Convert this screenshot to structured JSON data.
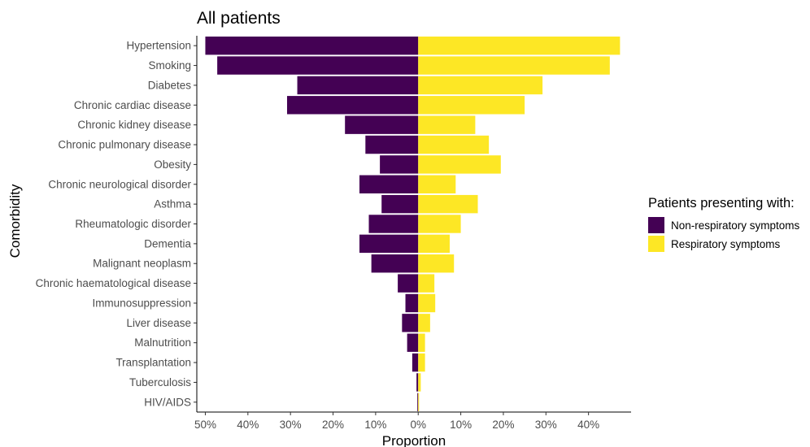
{
  "chart_data": {
    "type": "bar",
    "orientation": "horizontal-diverging",
    "title": "All patients",
    "xlabel": "Proportion",
    "ylabel": "Comorbidity",
    "xlim": [
      -52,
      50
    ],
    "x_ticks": [
      -50,
      -40,
      -30,
      -20,
      -10,
      0,
      10,
      20,
      30,
      40
    ],
    "x_tick_labels": [
      "50%",
      "40%",
      "30%",
      "20%",
      "10%",
      "0%",
      "10%",
      "20%",
      "30%",
      "40%"
    ],
    "grid": false,
    "categories": [
      "Hypertension",
      "Smoking",
      "Diabetes",
      "Chronic cardiac disease",
      "Chronic kidney disease",
      "Chronic pulmonary disease",
      "Obesity",
      "Chronic neurological disorder",
      "Asthma",
      "Rheumatologic disorder",
      "Dementia",
      "Malignant neoplasm",
      "Chronic haematological disease",
      "Immunosuppression",
      "Liver disease",
      "Malnutrition",
      "Transplantation",
      "Tuberculosis",
      "HIV/AIDS"
    ],
    "series": [
      {
        "name": "Non-respiratory symptoms",
        "color": "#440154",
        "direction": "left",
        "values": [
          50.0,
          47.2,
          28.4,
          30.8,
          17.2,
          12.4,
          9.0,
          13.8,
          8.6,
          11.6,
          13.8,
          11.0,
          4.8,
          3.0,
          3.8,
          2.6,
          1.4,
          0.4,
          0.2
        ]
      },
      {
        "name": "Respiratory symptoms",
        "color": "#FDE725",
        "direction": "right",
        "values": [
          47.4,
          45.0,
          29.2,
          25.0,
          13.4,
          16.6,
          19.4,
          8.8,
          14.0,
          10.0,
          7.4,
          8.4,
          3.8,
          4.0,
          2.8,
          1.6,
          1.6,
          0.6,
          0.2
        ]
      }
    ],
    "legend": {
      "title": "Patients presenting with:",
      "position": "right"
    }
  }
}
